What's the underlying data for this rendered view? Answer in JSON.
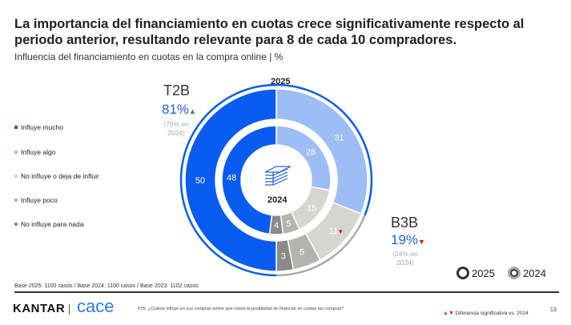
{
  "header": {
    "title": "La importancia del financiamiento en cuotas crece significativamente respecto al periodo anterior, resultando relevante para 8 de cada 10 compradores.",
    "subtitle": "Influencia del financiamiento en cuotas en la compra online | %"
  },
  "chart_data": {
    "type": "donut",
    "categories": [
      "Influye mucho",
      "Influye algo",
      "No influye o deja de influir",
      "Influye poco",
      "No influye para nada"
    ],
    "colors": [
      "#0a5cf0",
      "#9ebcf6",
      "#d6d5d0",
      "#b5b3ae",
      "#8a8a8a"
    ],
    "series": [
      {
        "name": "2025",
        "values": [
          50,
          31,
          11,
          5,
          3
        ]
      },
      {
        "name": "2024",
        "values": [
          48,
          28,
          15,
          5,
          4
        ]
      }
    ],
    "order_clockwise_from_top": [
      "Influye algo",
      "No influye o deja de influir",
      "Influye poco",
      "No influye para nada",
      "Influye mucho"
    ],
    "significance": {
      "2025 No influye o deja de influir": "down"
    },
    "legend_position": "left"
  },
  "labels": {
    "year_outer": "2025",
    "year_inner": "2024",
    "t2b": {
      "label": "T2B",
      "value": "81%",
      "arrow": "▲",
      "prev": "(76% en 2024)"
    },
    "b3b": {
      "label": "B3B",
      "value": "19%",
      "arrow": "▼",
      "prev": "(24% en 2024)"
    },
    "down_marker": "▼"
  },
  "legend_years": [
    "2025",
    "2024"
  ],
  "footer": {
    "base": "Base 2025: 1100 casos / Base 2024: 1100 casos / Base 2023: 1102 casos",
    "kantar": "KANTAR",
    "cace": "cace",
    "question": "P25. ¿Cuánto influye en sus compras online que exista la posibilidad de financiar en cuotas las compras?",
    "sig_up": "▲",
    "sig_down": "▼",
    "sig": "Diferencia significativa vs. 2024",
    "page": "13"
  }
}
